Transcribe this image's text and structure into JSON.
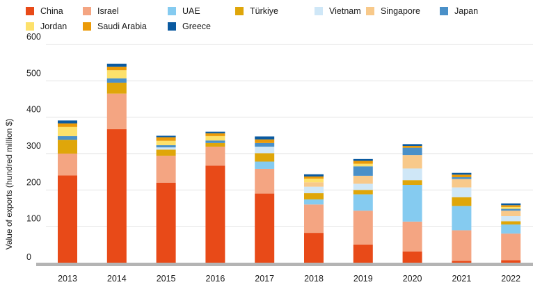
{
  "chart_data": {
    "type": "bar",
    "stacked": true,
    "ylabel": "Value of exports (hundred million $)",
    "xlabel": "",
    "ylim": [
      0,
      600
    ],
    "yticks": [
      0,
      100,
      200,
      300,
      400,
      500,
      600
    ],
    "grid": true,
    "legend_position": "top",
    "categories": [
      "2013",
      "2014",
      "2015",
      "2016",
      "2017",
      "2018",
      "2019",
      "2020",
      "2021",
      "2022"
    ],
    "series": [
      {
        "name": "China",
        "color": "#e84a18",
        "values": [
          240,
          367,
          220,
          267,
          190,
          82,
          50,
          31,
          5,
          7
        ]
      },
      {
        "name": "Israel",
        "color": "#f4a582",
        "values": [
          60,
          98,
          74,
          52,
          68,
          78,
          93,
          82,
          84,
          73
        ]
      },
      {
        "name": "UAE",
        "color": "#85cbf0",
        "values": [
          0,
          0,
          0,
          0,
          20,
          14,
          45,
          101,
          67,
          25
        ]
      },
      {
        "name": "Türkiye",
        "color": "#dfa60a",
        "values": [
          38,
          30,
          17,
          10,
          23,
          17,
          12,
          13,
          24,
          9
        ]
      },
      {
        "name": "Vietnam",
        "color": "#cfe7f7",
        "values": [
          0,
          0,
          6,
          0,
          18,
          18,
          17,
          32,
          27,
          14
        ]
      },
      {
        "name": "Singapore",
        "color": "#f8c98a",
        "values": [
          0,
          0,
          0,
          0,
          0,
          12,
          22,
          37,
          23,
          15
        ]
      },
      {
        "name": "Japan",
        "color": "#4a90c8",
        "values": [
          10,
          12,
          6,
          7,
          10,
          0,
          26,
          20,
          5,
          5
        ]
      },
      {
        "name": "Jordan",
        "color": "#fde16b",
        "values": [
          25,
          22,
          12,
          12,
          0,
          10,
          7,
          0,
          0,
          5
        ]
      },
      {
        "name": "Saudi Arabia",
        "color": "#eb9a07",
        "values": [
          10,
          10,
          10,
          8,
          10,
          6,
          8,
          5,
          7,
          5
        ]
      },
      {
        "name": "Greece",
        "color": "#0a5aa0",
        "values": [
          8,
          8,
          4,
          4,
          8,
          6,
          5,
          5,
          5,
          5
        ]
      }
    ]
  }
}
